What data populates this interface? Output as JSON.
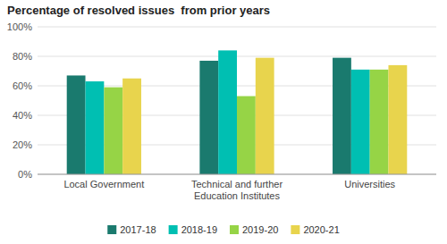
{
  "chart_data": {
    "type": "bar",
    "title": "Percentage of resolved issues  from prior years",
    "categories": [
      "Local Government",
      "Technical and further\nEducation Institutes",
      "Universities"
    ],
    "series": [
      {
        "name": "2017-18",
        "color": "#1a7a6e",
        "values": [
          67,
          77,
          79
        ]
      },
      {
        "name": "2018-19",
        "color": "#00bfb2",
        "values": [
          63,
          84,
          71
        ]
      },
      {
        "name": "2019-20",
        "color": "#96d446",
        "values": [
          59,
          53,
          71
        ]
      },
      {
        "name": "2020-21",
        "color": "#e8d44d",
        "values": [
          65,
          79,
          74
        ]
      }
    ],
    "ylim": [
      0,
      100
    ],
    "yticks": [
      {
        "value": 0,
        "label": "0%"
      },
      {
        "value": 20,
        "label": "20%"
      },
      {
        "value": 40,
        "label": "40%"
      },
      {
        "value": 60,
        "label": "60%"
      },
      {
        "value": 80,
        "label": "80%"
      },
      {
        "value": 100,
        "label": "100%"
      }
    ],
    "grid": true,
    "legend": "bottom"
  }
}
